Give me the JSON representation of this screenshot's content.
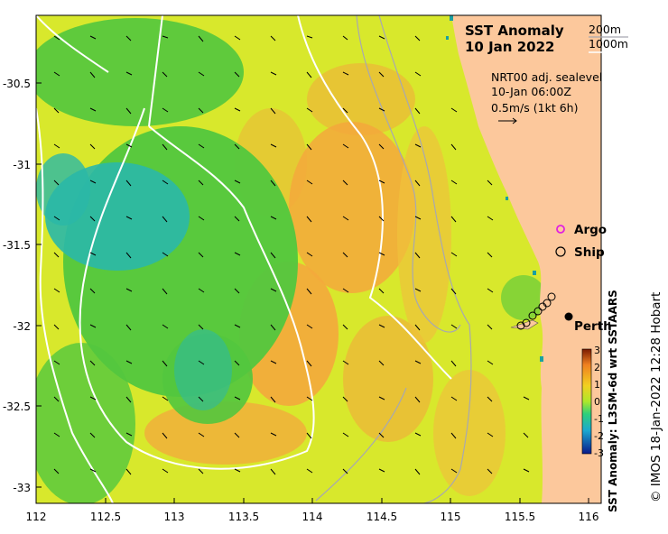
{
  "map": {
    "title": "SST Anomaly",
    "date": "10 Jan 2022",
    "contours": {
      "c200": "200m",
      "c1000": "1000m"
    },
    "current": {
      "source": "NRT00 adj. sealevel",
      "time": "10-Jan 06:00Z",
      "scale": "0.5m/s (1kt 6h)"
    },
    "legend": {
      "argo": "Argo",
      "ship": "Ship"
    },
    "city": "Perth",
    "x_ticks": [
      "112",
      "112.5",
      "113",
      "113.5",
      "114",
      "114.5",
      "115",
      "115.5",
      "116"
    ],
    "y_ticks": [
      "-30.5",
      "-31",
      "-31.5",
      "-32",
      "-32.5",
      "-33"
    ],
    "colorbar": {
      "label": "SST Anomaly: L3SM-6d wrt SSTAARS",
      "ticks": [
        "3",
        "2",
        "1",
        "0",
        "-1",
        "-2",
        "-3"
      ]
    },
    "credit": "© IMOS 18-Jan-2022 12:28 Hobart",
    "colors": {
      "land": "#fcc89c",
      "warm": "#f5a23a",
      "neutral": "#e2ea2a",
      "cool": "#3fc23a",
      "cold": "#2bb6b0"
    }
  }
}
